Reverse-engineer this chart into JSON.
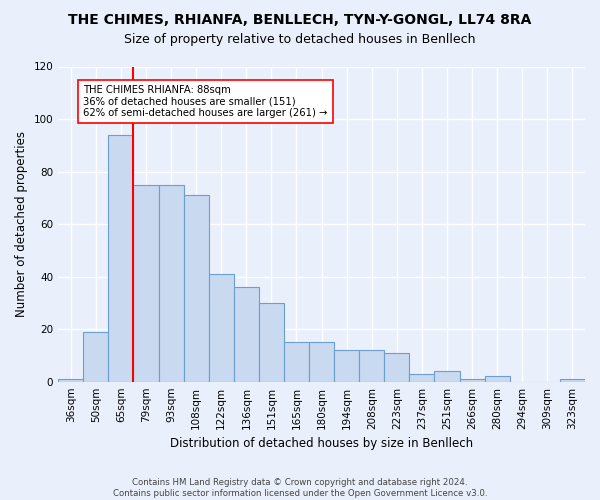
{
  "title": "THE CHIMES, RHIANFA, BENLLECH, TYN-Y-GONGL, LL74 8RA",
  "subtitle": "Size of property relative to detached houses in Benllech",
  "xlabel": "Distribution of detached houses by size in Benllech",
  "ylabel": "Number of detached properties",
  "bar_labels": [
    "36sqm",
    "50sqm",
    "65sqm",
    "79sqm",
    "93sqm",
    "108sqm",
    "122sqm",
    "136sqm",
    "151sqm",
    "165sqm",
    "180sqm",
    "194sqm",
    "208sqm",
    "223sqm",
    "237sqm",
    "251sqm",
    "266sqm",
    "280sqm",
    "294sqm",
    "309sqm",
    "323sqm"
  ],
  "bar_values": [
    1,
    19,
    94,
    75,
    75,
    71,
    41,
    36,
    30,
    15,
    15,
    12,
    12,
    11,
    3,
    4,
    1,
    2,
    0,
    0,
    1
  ],
  "bar_color": "#c9d9f0",
  "bar_edge_color": "#6b9fd4",
  "red_line_x": 2.5,
  "annotation_line1": "THE CHIMES RHIANFA: 88sqm",
  "annotation_line2": "36% of detached houses are smaller (151)",
  "annotation_line3": "62% of semi-detached houses are larger (261) →",
  "ylim": [
    0,
    120
  ],
  "yticks": [
    0,
    20,
    40,
    60,
    80,
    100,
    120
  ],
  "footer_text": "Contains HM Land Registry data © Crown copyright and database right 2024.\nContains public sector information licensed under the Open Government Licence v3.0.",
  "bg_color": "#eaf0fb",
  "plot_bg_color": "#eaf0fb",
  "grid_color": "#ffffff",
  "title_fontsize": 10,
  "subtitle_fontsize": 9,
  "axis_label_fontsize": 8.5,
  "tick_fontsize": 7.5
}
